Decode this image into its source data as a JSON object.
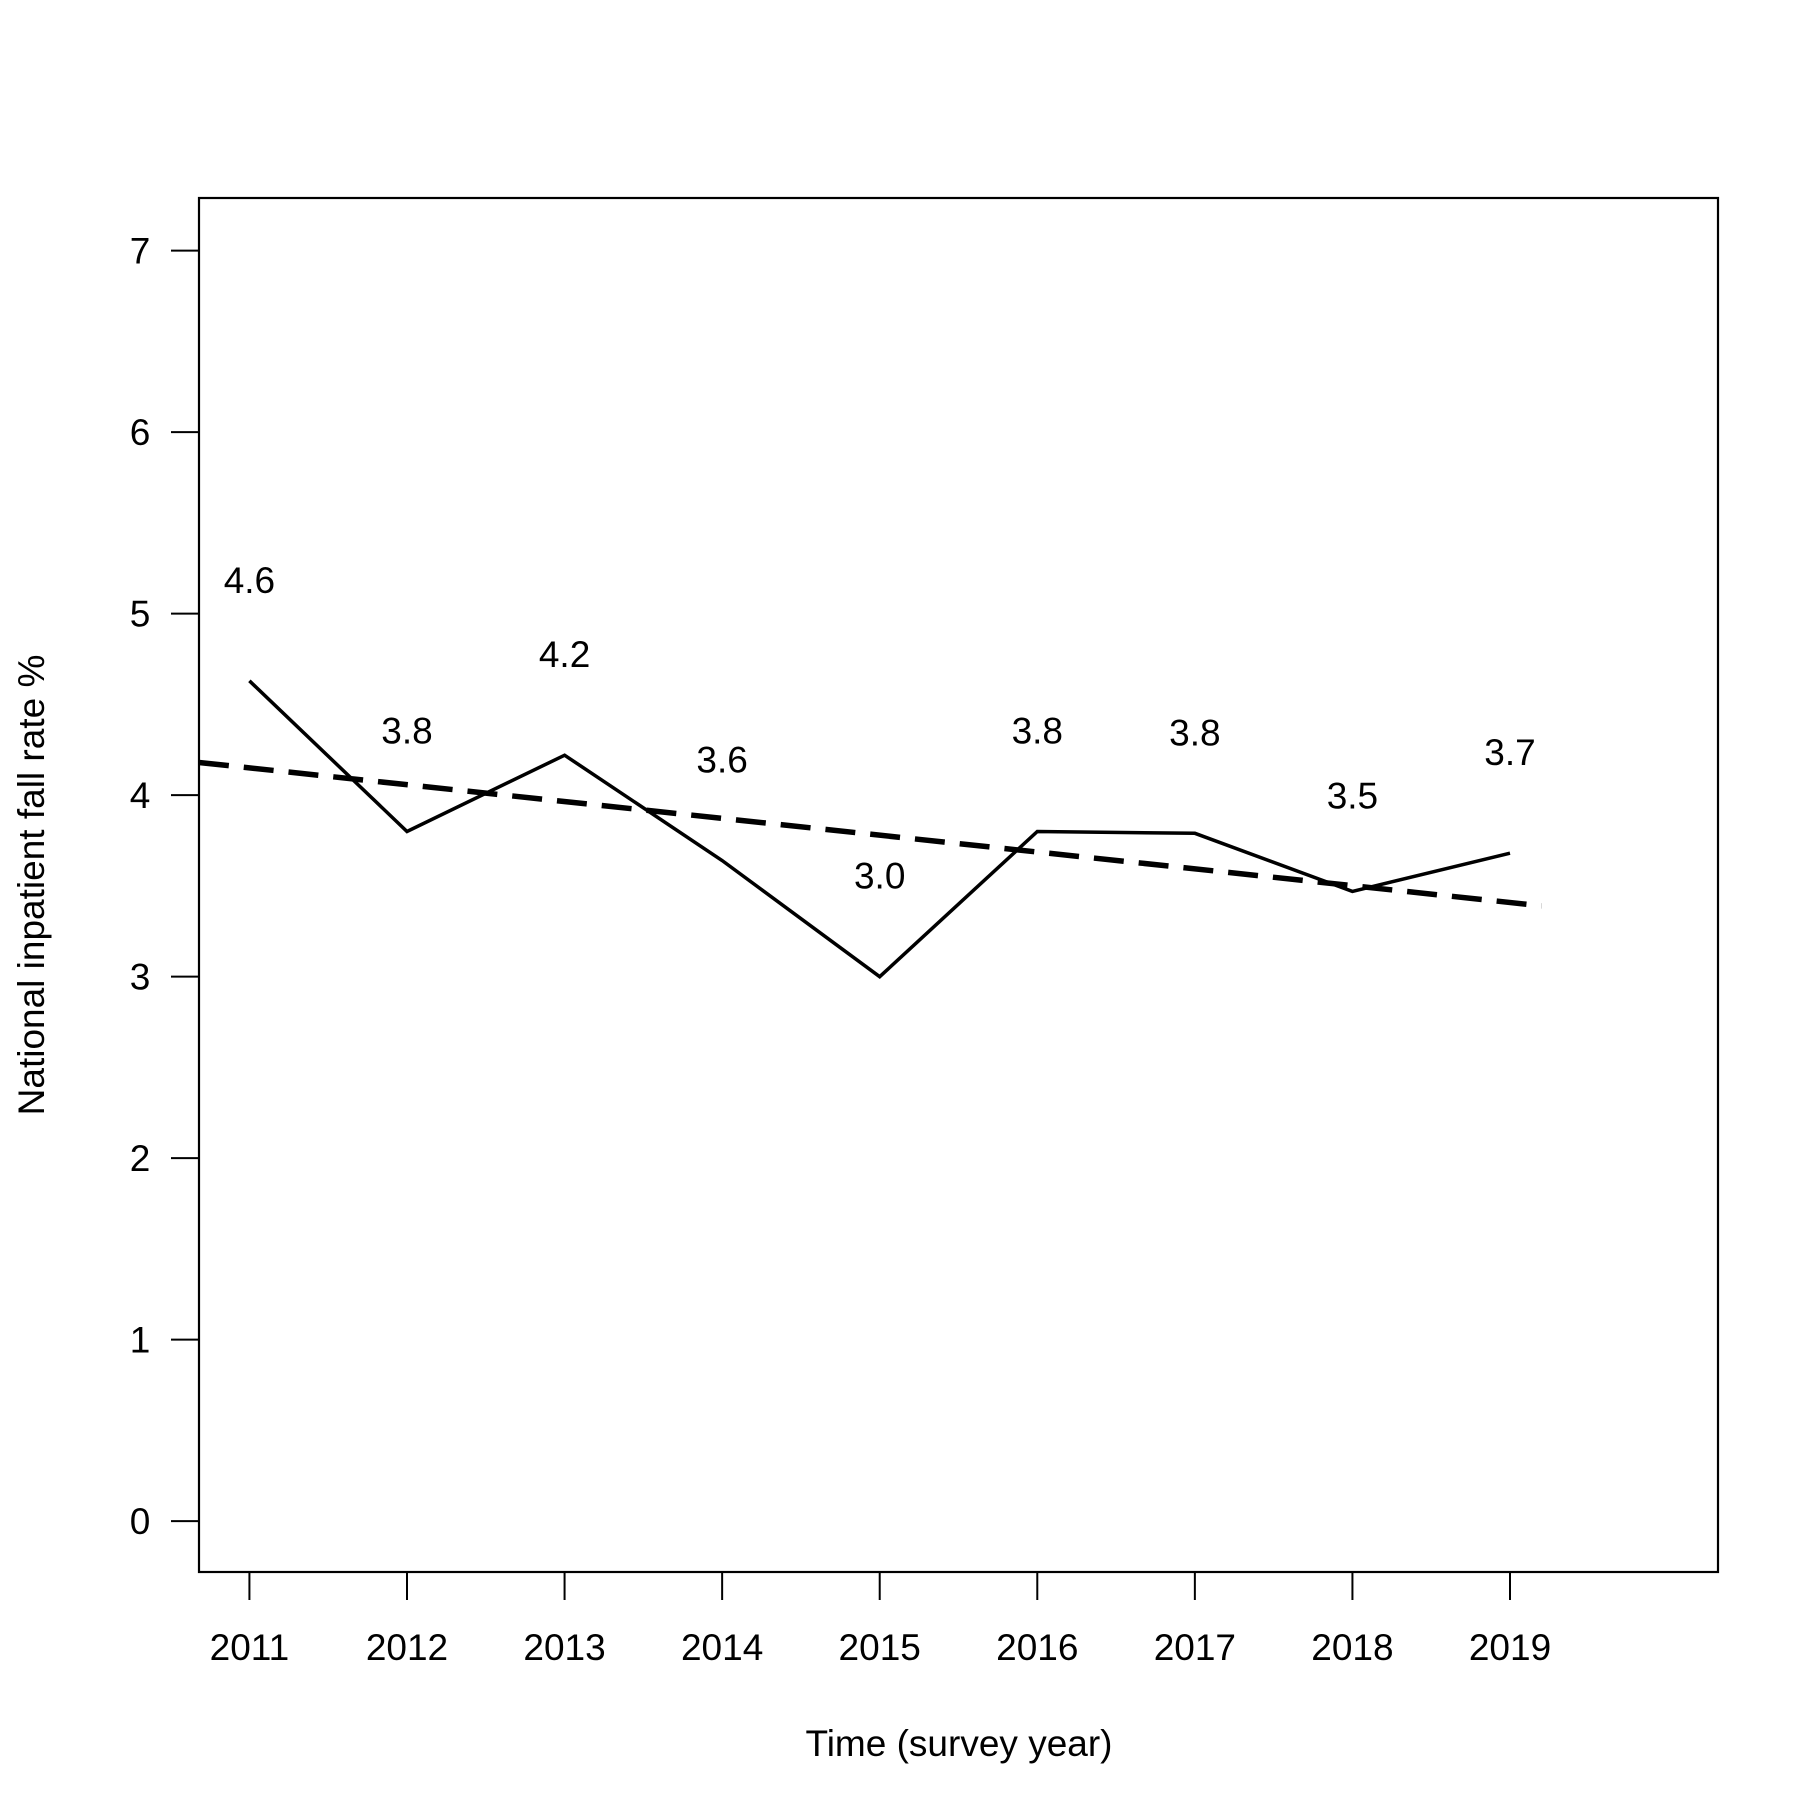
{
  "chart_data": {
    "type": "line",
    "title": "",
    "xlabel": "Time (survey year)",
    "ylabel": "National inpatient fall rate %",
    "x": [
      2011,
      2012,
      2013,
      2014,
      2015,
      2016,
      2017,
      2018,
      2019
    ],
    "x_tick_labels": [
      "2011",
      "2012",
      "2013",
      "2014",
      "2015",
      "2016",
      "2017",
      "2018",
      "2019"
    ],
    "xlim": [
      2010.68,
      2020.32
    ],
    "ylim": [
      -0.28,
      7.29
    ],
    "y_ticks": [
      0,
      1,
      2,
      3,
      4,
      5,
      6,
      7
    ],
    "y_tick_labels": [
      "0",
      "1",
      "2",
      "3",
      "4",
      "5",
      "6",
      "7"
    ],
    "grid": false,
    "legend": "none",
    "series": [
      {
        "style": "solid",
        "color": "#000000",
        "values": [
          4.63,
          3.8,
          4.22,
          3.64,
          3.0,
          3.8,
          3.79,
          3.47,
          3.68
        ],
        "data_labels": [
          "4.6",
          "3.8",
          "4.2",
          "3.6",
          "3.0",
          "3.8",
          "3.8",
          "3.5",
          "3.7"
        ]
      },
      {
        "style": "dashed",
        "color": "#000000",
        "x": [
          2010.68,
          2019.2
        ],
        "values": [
          4.18,
          3.39
        ]
      }
    ]
  }
}
